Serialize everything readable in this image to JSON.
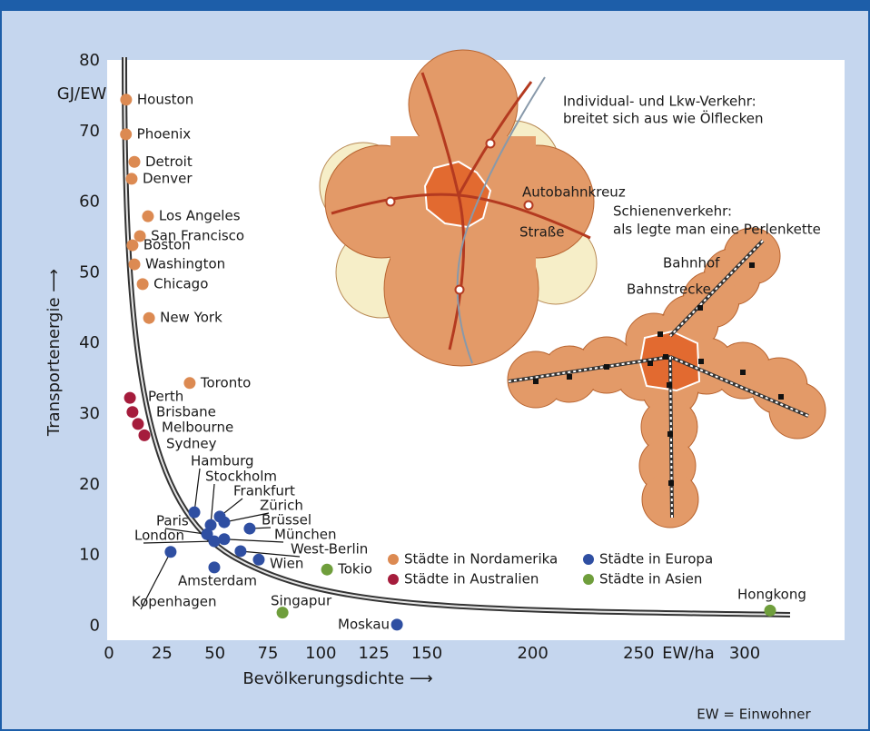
{
  "chart_data": {
    "type": "scatter",
    "y_label": "Transportenergie ⟶",
    "y_unit": "GJ/EW",
    "x_label": "Bevölkerungsdichte ⟶",
    "x_unit": "EW/ha",
    "note": "EW = Einwohner",
    "xlim": [
      0,
      345
    ],
    "ylim": [
      -2,
      80
    ],
    "xticks": [
      0,
      25,
      50,
      75,
      100,
      125,
      150,
      200,
      250,
      300
    ],
    "yticks": [
      0,
      10,
      20,
      30,
      40,
      50,
      60,
      70,
      80
    ],
    "grid": false,
    "series": [
      {
        "name": "Städte in Nordamerika",
        "color": "#dc8a52",
        "labels": [
          "Houston",
          "Phoenix",
          "Detroit",
          "Denver",
          "Los Angeles",
          "San Francisco",
          "Boston",
          "Washington",
          "Chicago",
          "New York",
          "Toronto"
        ],
        "x": [
          8.1,
          8,
          12,
          10.7,
          18.4,
          14.6,
          11.1,
          12,
          15.9,
          18.9,
          38.1
        ],
        "values": [
          74.5,
          69.6,
          65.7,
          63.3,
          58.0,
          55.2,
          53.9,
          51.2,
          48.4,
          43.6,
          34.4
        ]
      },
      {
        "name": "Städte in Australien",
        "color": "#a51c3c",
        "labels": [
          "Perth",
          "Brisbane",
          "Melbourne",
          "Sydney"
        ],
        "x": [
          9.9,
          11.1,
          13.7,
          16.7
        ],
        "values": [
          32.3,
          30.3,
          28.6,
          27.0
        ]
      },
      {
        "name": "Städte in Europa",
        "color": "#2f4fa2",
        "labels": [
          "Hamburg",
          "Stockholm",
          "Frankfurt",
          "Zürich",
          "Brüssel",
          "Paris",
          "London",
          "München",
          "West-Berlin",
          "Wien",
          "Amsterdam",
          "Kopenhagen",
          "Moskau"
        ],
        "x": [
          40.3,
          48,
          52.3,
          54.4,
          66.4,
          46.3,
          49.7,
          54.4,
          62.1,
          70.7,
          49.7,
          29.1,
          135.9
        ],
        "values": [
          16.1,
          14.3,
          15.5,
          14.7,
          13.8,
          13.0,
          12.0,
          12.3,
          10.6,
          9.4,
          8.3,
          10.5,
          0.2
        ]
      },
      {
        "name": "Städte in Asien",
        "color": "#6f9e3c",
        "labels": [
          "Tokio",
          "Singapur",
          "Hongkong"
        ],
        "x": [
          102.9,
          81.9,
          312
        ],
        "values": [
          8.0,
          1.9,
          2.2
        ]
      }
    ]
  },
  "illustration": {
    "oil_title": [
      "Individual- und Lkw-Verkehr:",
      "breitet sich aus wie Ölflecken"
    ],
    "oil_labels": [
      "Autobahnkreuz",
      "Straße"
    ],
    "rail_title": [
      "Schienenverkehr:",
      "als legte man eine Perlenkette"
    ],
    "rail_labels": [
      "Bahnhof",
      "Bahnstrecke"
    ]
  }
}
